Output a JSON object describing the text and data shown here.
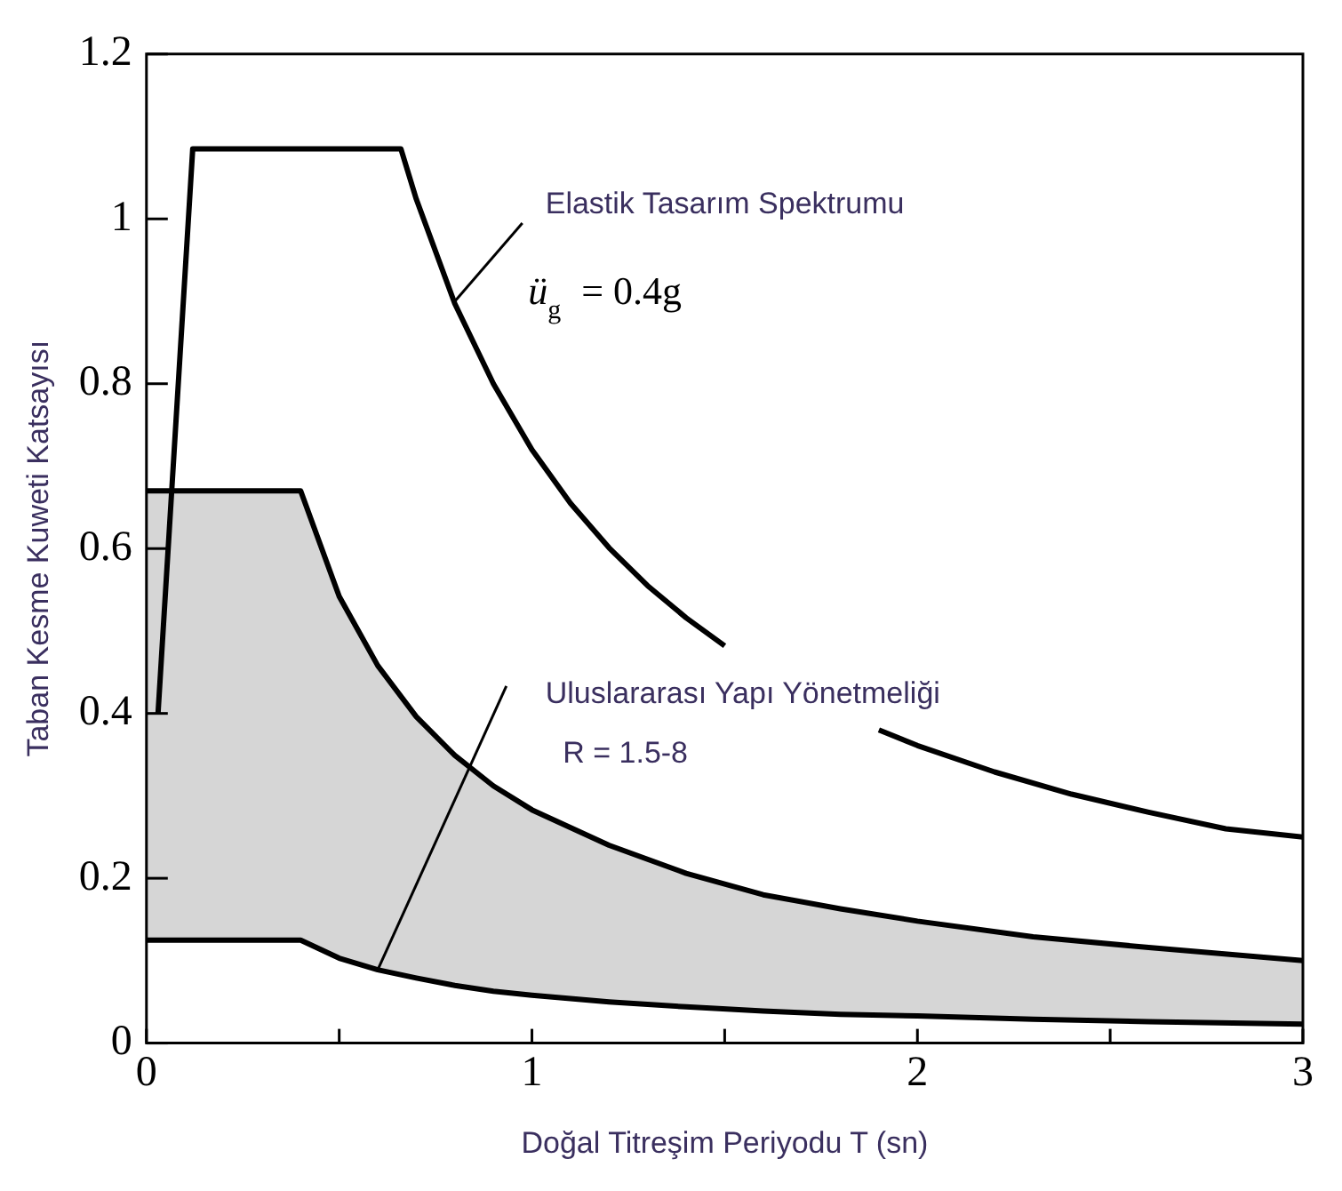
{
  "chart_data": {
    "type": "line",
    "xlabel": "Doğal Titreşim Periyodu T (sn)",
    "ylabel": "Taban Kesme Kuweti Katsayısı",
    "xlim": [
      0,
      3
    ],
    "xticks": [
      0,
      {
        "value": 0.5,
        "label": null
      },
      1,
      {
        "value": 1.5,
        "label": null
      },
      2,
      {
        "value": 2.5,
        "label": null
      },
      3
    ],
    "ylim": [
      0,
      1.2
    ],
    "yticks": [
      0,
      0.2,
      0.4,
      0.6,
      0.8,
      1,
      1.2
    ],
    "grid": false,
    "legend": false,
    "marker": "none",
    "line_style": "solid",
    "series": [
      {
        "type": "line",
        "color": "#000000",
        "x": [
          0.03,
          0.12,
          0.66,
          0.7,
          0.8,
          0.9,
          1.0,
          1.1,
          1.2,
          1.3,
          1.4,
          1.5,
          1.7,
          1.9,
          2.0,
          2.2,
          2.4,
          2.6,
          2.8,
          3.0
        ],
        "values": [
          0.4,
          1.085,
          1.085,
          1.024,
          0.897,
          0.8,
          0.72,
          0.655,
          0.601,
          0.555,
          0.516,
          0.482,
          null,
          0.38,
          0.361,
          0.329,
          0.302,
          0.28,
          0.26,
          0.25
        ]
      },
      {
        "type": "area",
        "color": "#000000",
        "x": [
          0,
          0.4,
          0.5,
          0.6,
          0.7,
          0.8,
          0.9,
          1.0,
          1.2,
          1.4,
          1.6,
          1.8,
          2.0,
          2.3,
          2.6,
          3.0
        ],
        "values": [
          0.67,
          0.67,
          0.542,
          0.458,
          0.396,
          0.349,
          0.312,
          0.283,
          0.24,
          0.206,
          0.18,
          0.163,
          0.148,
          0.129,
          0.116,
          0.1
        ]
      },
      {
        "type": "line",
        "color": "#000000",
        "x": [
          0,
          0.4,
          0.5,
          0.6,
          0.7,
          0.8,
          0.9,
          1.0,
          1.2,
          1.4,
          1.6,
          1.8,
          2.0,
          2.3,
          2.6,
          3.0
        ],
        "values": [
          0.125,
          0.125,
          0.103,
          0.089,
          0.079,
          0.07,
          0.063,
          0.058,
          0.05,
          0.044,
          0.039,
          0.035,
          0.033,
          0.029,
          0.026,
          0.023
        ]
      }
    ],
    "annotations": [
      {
        "text": "Elastik Tasarım Spektrumu",
        "x": 0.8,
        "y": 0.9
      },
      "ü$_{g}$ = 0.4g",
      {
        "text": "Uluslararası Yapı Yönetmeliği",
        "x": 0.6,
        "y": 0.089
      },
      "R = 1.5-8"
    ]
  }
}
